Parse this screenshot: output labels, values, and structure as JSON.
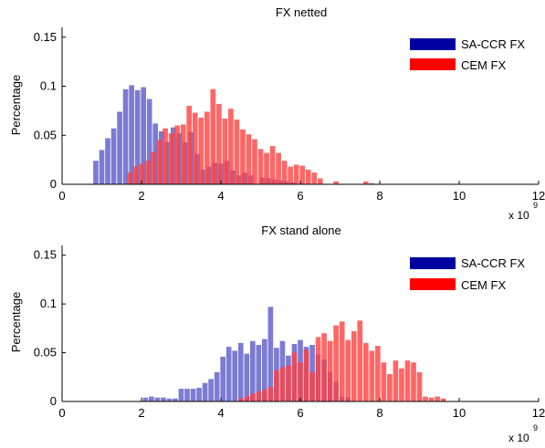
{
  "figure": {
    "x_multiplier_base": "x 10",
    "x_multiplier_exp": "9"
  },
  "chart_data": [
    {
      "type": "bar",
      "title": "FX netted",
      "xlabel": "",
      "ylabel": "Percentage",
      "xlim": [
        0,
        12
      ],
      "ylim": [
        0,
        0.16
      ],
      "xticks": [
        0,
        2,
        4,
        6,
        8,
        10,
        12
      ],
      "yticks": [
        0,
        0.05,
        0.1,
        0.15
      ],
      "xtick_labels": [
        "0",
        "2",
        "4",
        "6",
        "8",
        "10",
        "12"
      ],
      "ytick_labels": [
        "0",
        "0.05",
        "0.1",
        "0.15"
      ],
      "x_scale_note": "x 10^9",
      "legend_position": "top-right",
      "series": [
        {
          "name": "SA-CCR FX",
          "color": "#0000a0",
          "fill": "#5a5ac8",
          "x": [
            0.85,
            1.0,
            1.15,
            1.3,
            1.45,
            1.6,
            1.75,
            1.9,
            2.05,
            2.2,
            2.35,
            2.5,
            2.65,
            2.8,
            2.95,
            3.1,
            3.25,
            3.4,
            3.55,
            3.7,
            3.85,
            4.0,
            4.15,
            4.3,
            4.45,
            4.6,
            4.75,
            5.05,
            5.2,
            5.35,
            5.5,
            5.65,
            5.8,
            7.8
          ],
          "values": [
            0.024,
            0.035,
            0.047,
            0.057,
            0.074,
            0.097,
            0.101,
            0.096,
            0.099,
            0.087,
            0.062,
            0.054,
            0.043,
            0.058,
            0.052,
            0.043,
            0.053,
            0.031,
            0.015,
            0.018,
            0.022,
            0.021,
            0.024,
            0.014,
            0.009,
            0.012,
            0.009,
            0.007,
            0.006,
            0.005,
            0.004,
            0.003,
            0.002,
            0.001
          ]
        },
        {
          "name": "CEM FX",
          "color": "#ff0000",
          "fill": "#ff4040",
          "x": [
            1.7,
            1.85,
            2.0,
            2.15,
            2.3,
            2.45,
            2.6,
            2.75,
            2.9,
            3.05,
            3.2,
            3.35,
            3.5,
            3.65,
            3.8,
            3.95,
            4.1,
            4.25,
            4.4,
            4.55,
            4.7,
            4.85,
            5.0,
            5.15,
            5.3,
            5.45,
            5.6,
            5.75,
            5.9,
            6.05,
            6.2,
            6.35,
            6.5,
            6.9,
            7.65
          ],
          "values": [
            0.012,
            0.018,
            0.021,
            0.024,
            0.033,
            0.045,
            0.057,
            0.052,
            0.06,
            0.061,
            0.08,
            0.073,
            0.068,
            0.074,
            0.097,
            0.082,
            0.067,
            0.077,
            0.066,
            0.056,
            0.051,
            0.046,
            0.036,
            0.032,
            0.039,
            0.032,
            0.024,
            0.018,
            0.02,
            0.019,
            0.015,
            0.012,
            0.006,
            0.003,
            0.003
          ]
        }
      ]
    },
    {
      "type": "bar",
      "title": "FX stand alone",
      "xlabel": "",
      "ylabel": "Percentage",
      "xlim": [
        0,
        12
      ],
      "ylim": [
        0,
        0.16
      ],
      "xticks": [
        0,
        2,
        4,
        6,
        8,
        10,
        12
      ],
      "yticks": [
        0,
        0.05,
        0.1,
        0.15
      ],
      "xtick_labels": [
        "0",
        "2",
        "4",
        "6",
        "8",
        "10",
        "12"
      ],
      "ytick_labels": [
        "0",
        "0.05",
        "0.1",
        "0.15"
      ],
      "x_scale_note": "x 10^9",
      "legend_position": "top-right",
      "series": [
        {
          "name": "SA-CCR FX",
          "color": "#0000a0",
          "fill": "#5a5ac8",
          "x": [
            2.1,
            2.25,
            2.4,
            2.55,
            2.7,
            2.85,
            3.0,
            3.15,
            3.3,
            3.45,
            3.6,
            3.75,
            3.9,
            4.05,
            4.2,
            4.35,
            4.5,
            4.65,
            4.8,
            4.95,
            5.1,
            5.25,
            5.4,
            5.55,
            5.7,
            5.85,
            6.0,
            6.15,
            6.3,
            6.45,
            6.6,
            6.75,
            6.9,
            7.05,
            7.2
          ],
          "values": [
            0.004,
            0.005,
            0.004,
            0.004,
            0.003,
            0.003,
            0.013,
            0.013,
            0.013,
            0.014,
            0.019,
            0.023,
            0.03,
            0.046,
            0.056,
            0.052,
            0.06,
            0.049,
            0.062,
            0.058,
            0.064,
            0.097,
            0.055,
            0.062,
            0.047,
            0.059,
            0.063,
            0.056,
            0.058,
            0.048,
            0.043,
            0.03,
            0.02,
            0.005,
            0.004
          ]
        },
        {
          "name": "CEM FX",
          "color": "#ff0000",
          "fill": "#ff4040",
          "x": [
            4.5,
            4.65,
            4.8,
            4.95,
            5.1,
            5.25,
            5.4,
            5.55,
            5.7,
            5.85,
            6.0,
            6.15,
            6.3,
            6.45,
            6.6,
            6.75,
            6.9,
            7.05,
            7.2,
            7.35,
            7.5,
            7.65,
            7.8,
            7.95,
            8.1,
            8.25,
            8.4,
            8.55,
            8.7,
            8.85,
            9.0,
            9.15,
            9.3,
            9.45,
            9.6
          ],
          "values": [
            0.003,
            0.005,
            0.008,
            0.01,
            0.012,
            0.015,
            0.032,
            0.035,
            0.037,
            0.05,
            0.04,
            0.053,
            0.03,
            0.066,
            0.07,
            0.062,
            0.078,
            0.082,
            0.063,
            0.072,
            0.083,
            0.06,
            0.052,
            0.057,
            0.04,
            0.028,
            0.042,
            0.034,
            0.042,
            0.04,
            0.03,
            0.005,
            0.004,
            0.005,
            0.003
          ]
        }
      ]
    }
  ]
}
